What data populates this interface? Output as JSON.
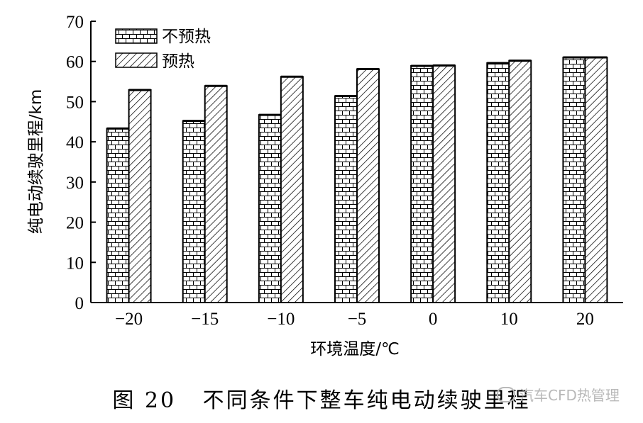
{
  "chart_data": {
    "type": "bar",
    "categories": [
      "−20",
      "−15",
      "−10",
      "−5",
      "0",
      "10",
      "20"
    ],
    "series": [
      {
        "name": "不预热",
        "values": [
          43.3,
          45.2,
          46.7,
          51.4,
          58.9,
          59.6,
          61.0
        ],
        "pattern": "brick"
      },
      {
        "name": "预热",
        "values": [
          52.9,
          53.9,
          56.2,
          58.1,
          59.0,
          60.2,
          61.0
        ],
        "pattern": "diagonal"
      }
    ],
    "xlabel": "环境温度/℃",
    "ylabel": "纯电动续驶里程/km",
    "ylim": [
      0,
      70
    ],
    "yticks": [
      0,
      10,
      20,
      30,
      40,
      50,
      60,
      70
    ],
    "grid": false,
    "legend_position": "top-left"
  },
  "caption": "图 20   不同条件下整车纯电动续驶里程",
  "watermark": "汽车CFD热管理",
  "watermark_icon": "wechat-icon",
  "colors": {
    "bar_fill": "#ffffff",
    "stroke": "#000000",
    "watermark": "#b9b9b9"
  }
}
